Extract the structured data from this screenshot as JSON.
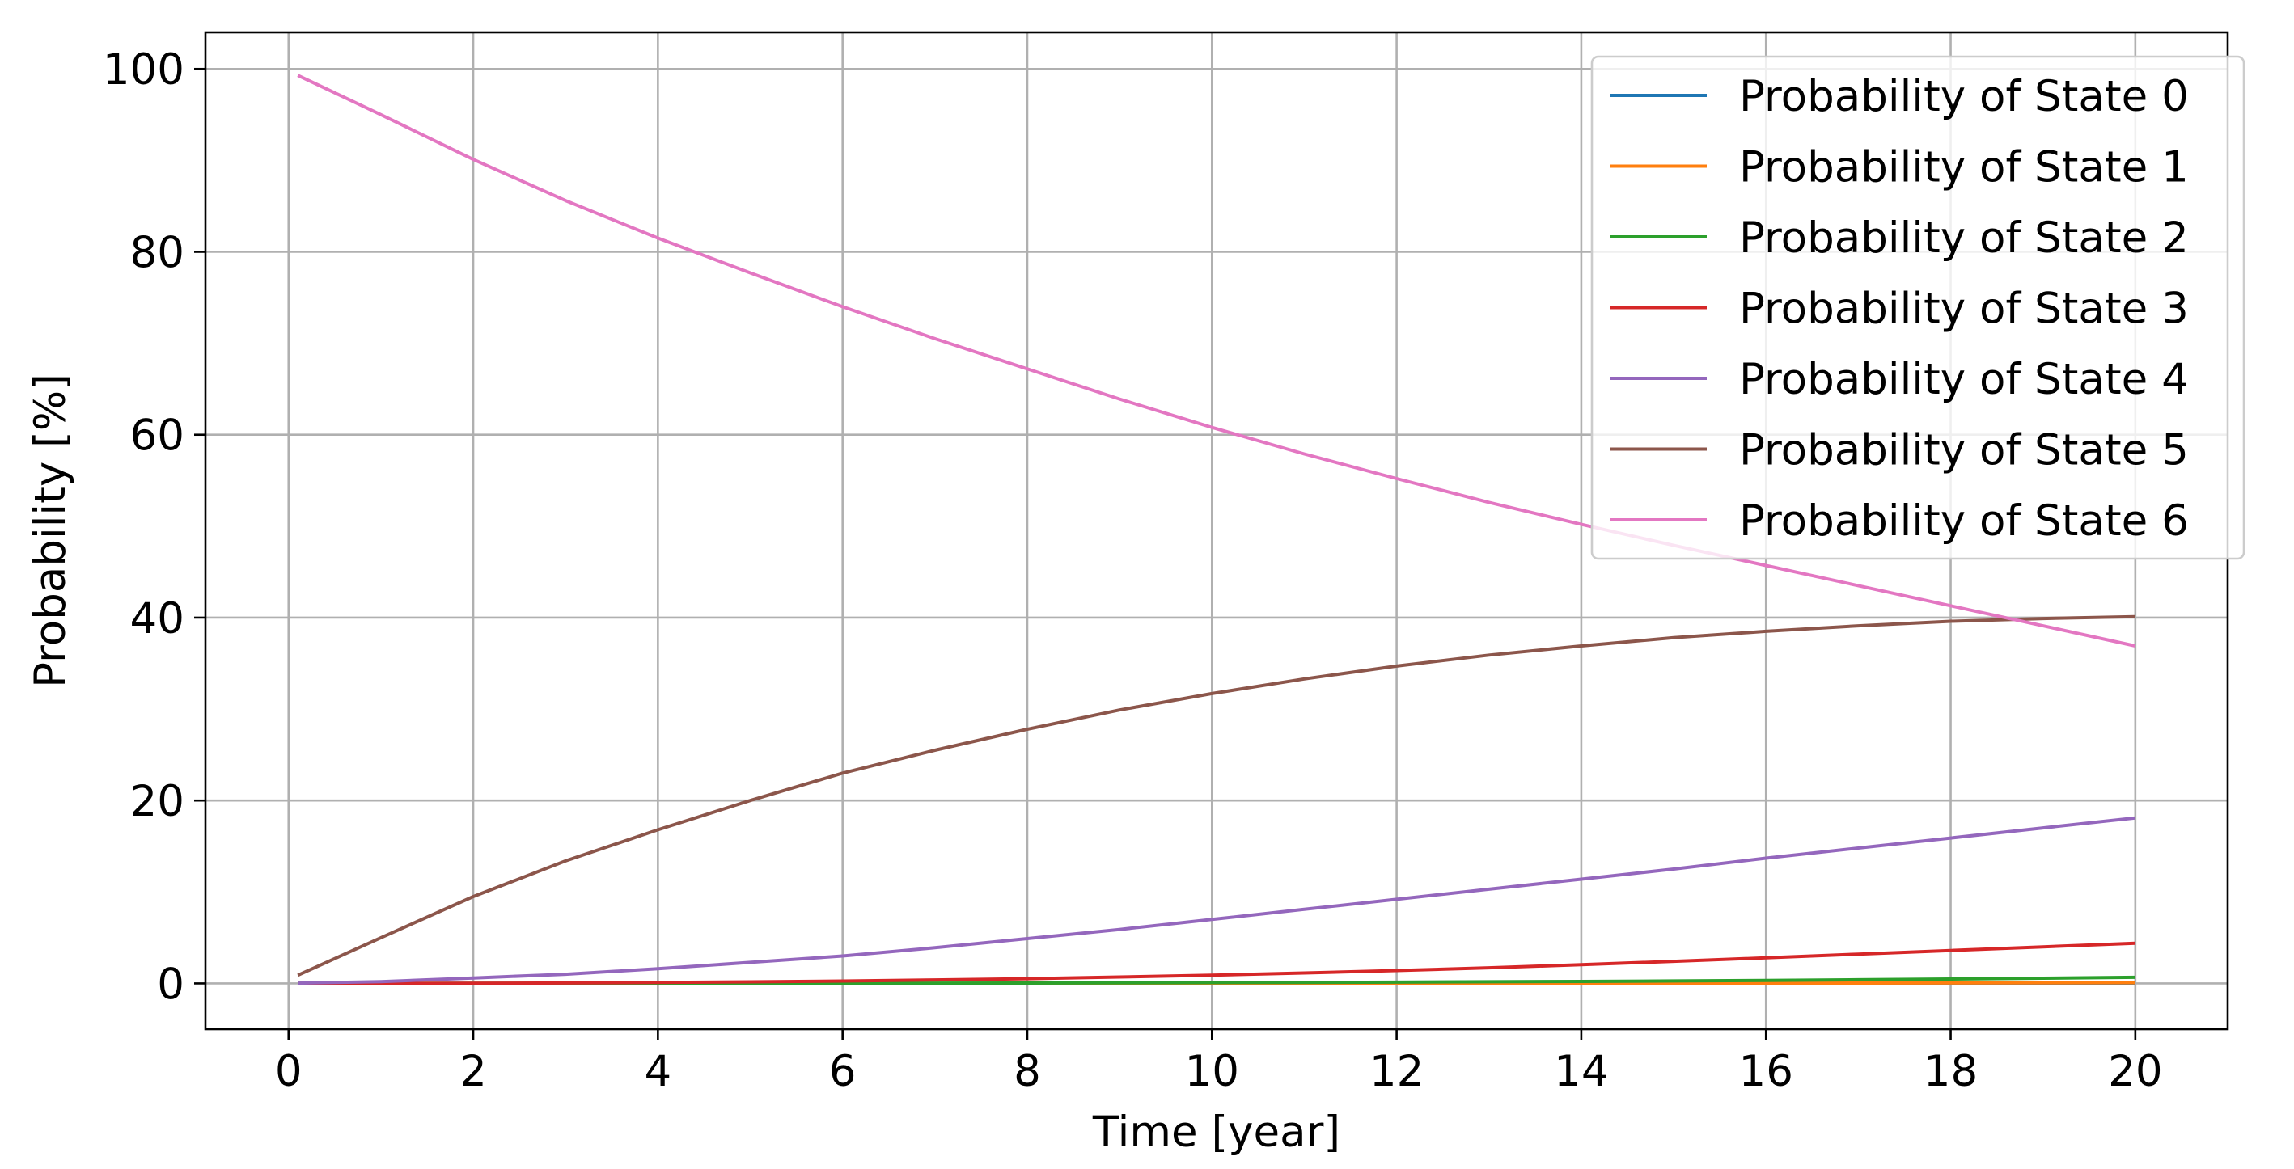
{
  "chart_data": {
    "type": "line",
    "title": "",
    "xlabel": "Time [year]",
    "ylabel": "Probability [%]",
    "xlim": [
      -0.9,
      21.0
    ],
    "ylim": [
      -5,
      104
    ],
    "xticks": [
      0,
      2,
      4,
      6,
      8,
      10,
      12,
      14,
      16,
      18,
      20
    ],
    "yticks": [
      0,
      20,
      40,
      60,
      80,
      100
    ],
    "grid": true,
    "legend_position": "top-right",
    "x": [
      0.1,
      1,
      2,
      3,
      4,
      5,
      6,
      7,
      8,
      9,
      10,
      11,
      12,
      13,
      14,
      15,
      16,
      17,
      18,
      19,
      20
    ],
    "series": [
      {
        "name": "Probability of State 0",
        "color": "#1f77b4",
        "values": [
          0,
          0,
          0,
          0,
          0,
          0,
          0,
          0,
          0,
          0,
          0,
          0,
          0,
          0,
          0,
          0,
          0,
          0,
          0,
          0,
          0
        ]
      },
      {
        "name": "Probability of State 1",
        "color": "#ff7f0e",
        "values": [
          0,
          0,
          0,
          0,
          0,
          0,
          0,
          0,
          0,
          0,
          0.01,
          0.01,
          0.01,
          0.02,
          0.02,
          0.03,
          0.03,
          0.04,
          0.05,
          0.06,
          0.07
        ]
      },
      {
        "name": "Probability of State 2",
        "color": "#2ca02c",
        "values": [
          0,
          0,
          0,
          0,
          0,
          0.01,
          0.02,
          0.03,
          0.04,
          0.06,
          0.08,
          0.11,
          0.14,
          0.18,
          0.22,
          0.27,
          0.33,
          0.4,
          0.48,
          0.57,
          0.67
        ]
      },
      {
        "name": "Probability of State 3",
        "color": "#d62728",
        "values": [
          0,
          0,
          0.02,
          0.05,
          0.1,
          0.17,
          0.26,
          0.38,
          0.52,
          0.7,
          0.9,
          1.14,
          1.41,
          1.71,
          2.05,
          2.42,
          2.8,
          3.2,
          3.6,
          4.0,
          4.4
        ]
      },
      {
        "name": "Probability of State 4",
        "color": "#9467bd",
        "values": [
          0.03,
          0.2,
          0.6,
          1.0,
          1.6,
          2.3,
          3.0,
          3.9,
          4.9,
          5.9,
          7.0,
          8.1,
          9.2,
          10.3,
          11.4,
          12.5,
          13.7,
          14.8,
          15.9,
          17.0,
          18.1
        ]
      },
      {
        "name": "Probability of State 5",
        "color": "#8c564b",
        "values": [
          0.9,
          5.0,
          9.5,
          13.4,
          16.8,
          20.0,
          23.0,
          25.5,
          27.8,
          29.9,
          31.7,
          33.3,
          34.7,
          35.9,
          36.9,
          37.8,
          38.5,
          39.1,
          39.6,
          39.9,
          40.1
        ]
      },
      {
        "name": "Probability of State 6",
        "color": "#e377c2",
        "values": [
          99.3,
          95.0,
          90.1,
          85.6,
          81.5,
          77.7,
          74.0,
          70.5,
          67.2,
          63.9,
          60.8,
          57.9,
          55.2,
          52.6,
          50.2,
          47.9,
          45.7,
          43.5,
          41.3,
          39.1,
          36.9
        ]
      }
    ]
  }
}
